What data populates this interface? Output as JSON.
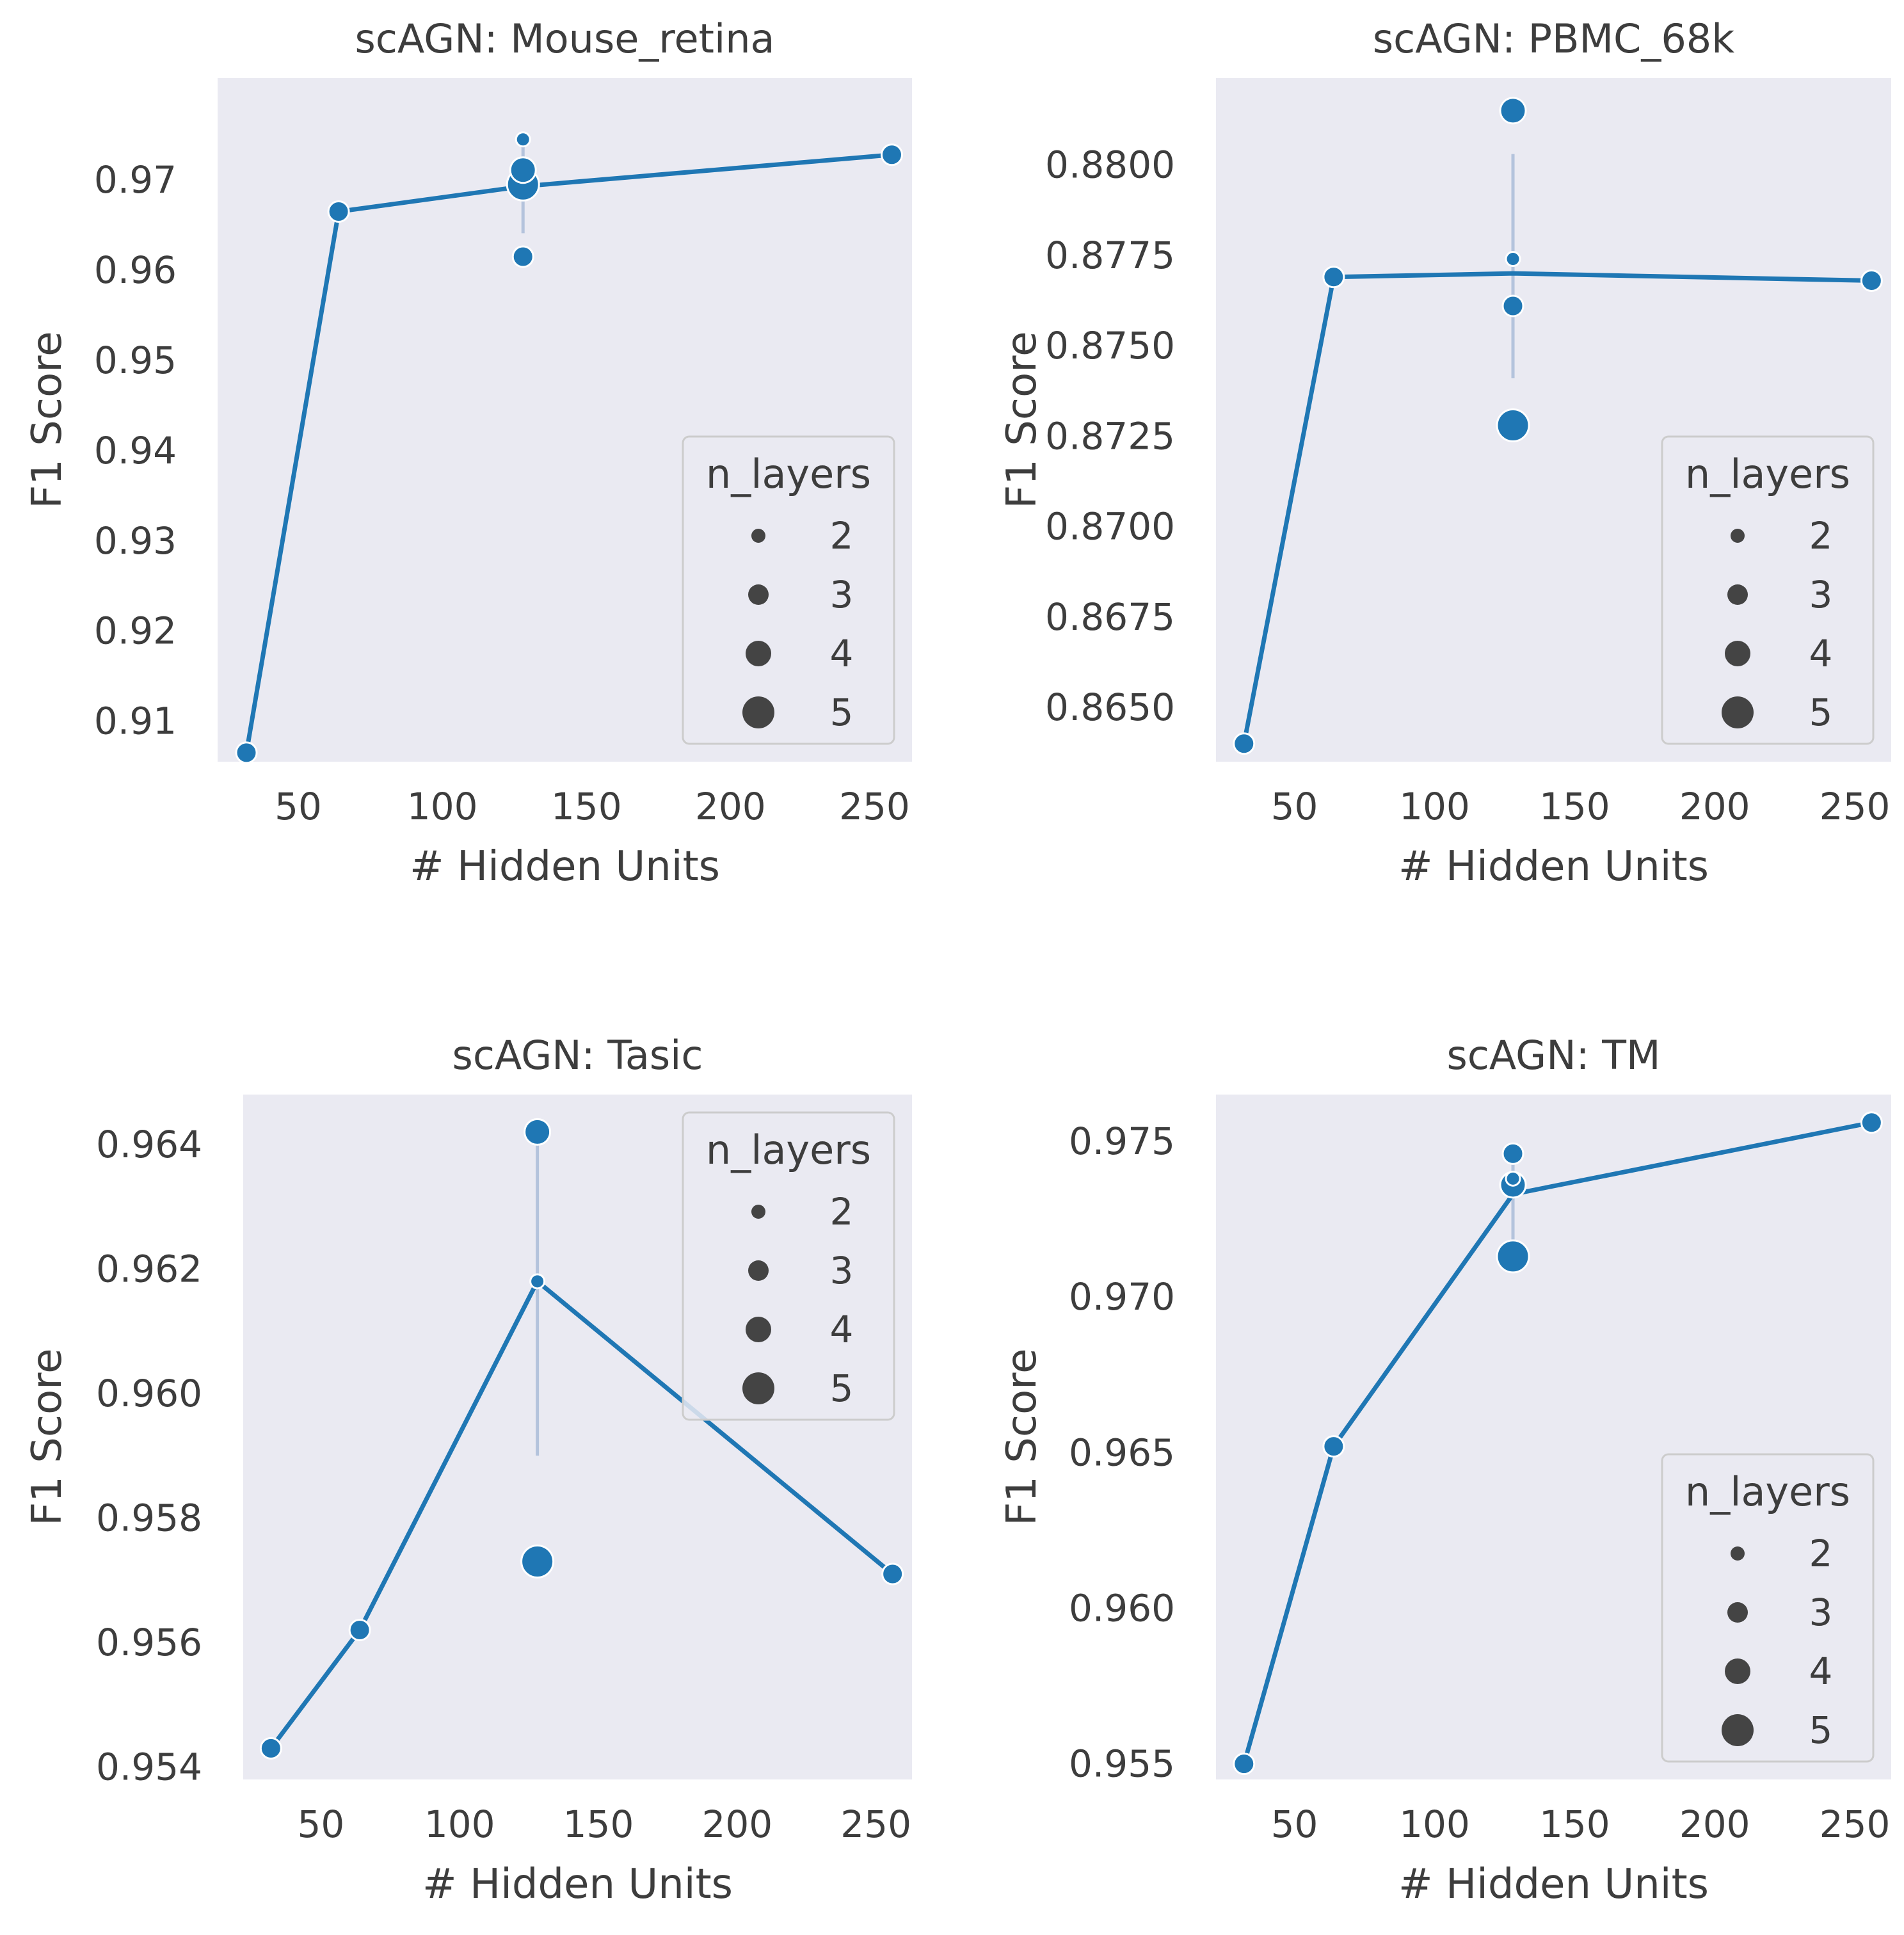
{
  "colors": {
    "series": "#1f77b4",
    "panel_bg": "#eaeaf2",
    "text": "#3d3d3d",
    "errbar": "#b4c3dc",
    "legend_border": "#cccccc"
  },
  "chart_data": [
    {
      "type": "line",
      "title": "scAGN: Mouse_retina",
      "xlabel": "# Hidden Units",
      "ylabel": "F1 Score",
      "xlim": [
        22,
        263
      ],
      "ylim": [
        0.9055,
        0.9813
      ],
      "xticks": [
        50,
        100,
        150,
        200,
        250
      ],
      "xtick_labels": [
        "50",
        "100",
        "150",
        "200",
        "250"
      ],
      "yticks": [
        0.91,
        0.92,
        0.93,
        0.94,
        0.95,
        0.96,
        0.97
      ],
      "ytick_labels": [
        "0.91",
        "0.92",
        "0.93",
        "0.94",
        "0.95",
        "0.96",
        "0.97"
      ],
      "line": {
        "x": [
          32,
          64,
          128,
          256
        ],
        "y": [
          0.9065,
          0.9665,
          0.9693,
          0.9728
        ]
      },
      "error_bars": [
        {
          "x": 128,
          "y_low": 0.9641,
          "y_high": 0.9745
        }
      ],
      "points": [
        {
          "x": 32,
          "y": 0.9065,
          "n_layers": 3
        },
        {
          "x": 64,
          "y": 0.9665,
          "n_layers": 3
        },
        {
          "x": 128,
          "y": 0.9745,
          "n_layers": 2
        },
        {
          "x": 128,
          "y": 0.9711,
          "n_layers": 4
        },
        {
          "x": 128,
          "y": 0.9695,
          "n_layers": 5
        },
        {
          "x": 128,
          "y": 0.9615,
          "n_layers": 3
        },
        {
          "x": 256,
          "y": 0.9728,
          "n_layers": 3
        }
      ],
      "legend": {
        "title": "n_layers",
        "labels": [
          "2",
          "3",
          "4",
          "5"
        ],
        "sizes": [
          2,
          3,
          4,
          5
        ],
        "placement": "lower-right"
      }
    },
    {
      "type": "line",
      "title": "scAGN: PBMC_68k",
      "xlabel": "# Hidden Units",
      "ylabel": "F1 Score",
      "xlim": [
        22,
        263
      ],
      "ylim": [
        0.8635,
        0.8824
      ],
      "xticks": [
        50,
        100,
        150,
        200,
        250
      ],
      "xtick_labels": [
        "50",
        "100",
        "150",
        "200",
        "250"
      ],
      "yticks": [
        0.865,
        0.8675,
        0.87,
        0.8725,
        0.875,
        0.8775,
        0.88
      ],
      "ytick_labels": [
        "0.8650",
        "0.8675",
        "0.8700",
        "0.8725",
        "0.8750",
        "0.8775",
        "0.8800"
      ],
      "line": {
        "x": [
          32,
          64,
          128,
          256
        ],
        "y": [
          0.864,
          0.8769,
          0.877,
          0.8768
        ]
      },
      "error_bars": [
        {
          "x": 128,
          "y_low": 0.8741,
          "y_high": 0.8803
        }
      ],
      "points": [
        {
          "x": 32,
          "y": 0.864,
          "n_layers": 3
        },
        {
          "x": 64,
          "y": 0.8769,
          "n_layers": 3
        },
        {
          "x": 128,
          "y": 0.8815,
          "n_layers": 4
        },
        {
          "x": 128,
          "y": 0.8774,
          "n_layers": 2
        },
        {
          "x": 128,
          "y": 0.8761,
          "n_layers": 3
        },
        {
          "x": 128,
          "y": 0.8728,
          "n_layers": 5
        },
        {
          "x": 256,
          "y": 0.8768,
          "n_layers": 3
        }
      ],
      "legend": {
        "title": "n_layers",
        "labels": [
          "2",
          "3",
          "4",
          "5"
        ],
        "sizes": [
          2,
          3,
          4,
          5
        ],
        "placement": "lower-right"
      }
    },
    {
      "type": "line",
      "title": "scAGN: Tasic",
      "xlabel": "# Hidden Units",
      "ylabel": "F1 Score",
      "xlim": [
        22,
        263
      ],
      "ylim": [
        0.9538,
        0.9648
      ],
      "xticks": [
        50,
        100,
        150,
        200,
        250
      ],
      "xtick_labels": [
        "50",
        "100",
        "150",
        "200",
        "250"
      ],
      "yticks": [
        0.954,
        0.956,
        0.958,
        0.96,
        0.962,
        0.964
      ],
      "ytick_labels": [
        "0.954",
        "0.956",
        "0.958",
        "0.960",
        "0.962",
        "0.964"
      ],
      "line": {
        "x": [
          32,
          64,
          128,
          256
        ],
        "y": [
          0.9543,
          0.9562,
          0.9618,
          0.9571
        ]
      },
      "error_bars": [
        {
          "x": 128,
          "y_low": 0.959,
          "y_high": 0.9642
        }
      ],
      "points": [
        {
          "x": 32,
          "y": 0.9543,
          "n_layers": 3
        },
        {
          "x": 64,
          "y": 0.9562,
          "n_layers": 3
        },
        {
          "x": 128,
          "y": 0.9642,
          "n_layers": 4
        },
        {
          "x": 128,
          "y": 0.9618,
          "n_layers": 2
        },
        {
          "x": 128,
          "y": 0.9573,
          "n_layers": 5
        },
        {
          "x": 256,
          "y": 0.9571,
          "n_layers": 3
        }
      ],
      "legend": {
        "title": "n_layers",
        "labels": [
          "2",
          "3",
          "4",
          "5"
        ],
        "sizes": [
          2,
          3,
          4,
          5
        ],
        "placement": "upper-right"
      }
    },
    {
      "type": "line",
      "title": "scAGN: TM",
      "xlabel": "# Hidden Units",
      "ylabel": "F1 Score",
      "xlim": [
        22,
        263
      ],
      "ylim": [
        0.9545,
        0.9765
      ],
      "xticks": [
        50,
        100,
        150,
        200,
        250
      ],
      "xtick_labels": [
        "50",
        "100",
        "150",
        "200",
        "250"
      ],
      "yticks": [
        0.955,
        0.96,
        0.965,
        0.97,
        0.975
      ],
      "ytick_labels": [
        "0.955",
        "0.960",
        "0.965",
        "0.970",
        "0.975"
      ],
      "line": {
        "x": [
          32,
          64,
          128,
          256
        ],
        "y": [
          0.955,
          0.9652,
          0.9733,
          0.9756
        ]
      },
      "error_bars": [
        {
          "x": 128,
          "y_low": 0.9712,
          "y_high": 0.9745
        }
      ],
      "points": [
        {
          "x": 32,
          "y": 0.955,
          "n_layers": 3
        },
        {
          "x": 64,
          "y": 0.9652,
          "n_layers": 3
        },
        {
          "x": 128,
          "y": 0.9746,
          "n_layers": 3
        },
        {
          "x": 128,
          "y": 0.9736,
          "n_layers": 4
        },
        {
          "x": 128,
          "y": 0.9738,
          "n_layers": 2
        },
        {
          "x": 128,
          "y": 0.9713,
          "n_layers": 5
        },
        {
          "x": 256,
          "y": 0.9756,
          "n_layers": 3
        }
      ],
      "legend": {
        "title": "n_layers",
        "labels": [
          "2",
          "3",
          "4",
          "5"
        ],
        "sizes": [
          2,
          3,
          4,
          5
        ],
        "placement": "lower-right"
      }
    }
  ]
}
